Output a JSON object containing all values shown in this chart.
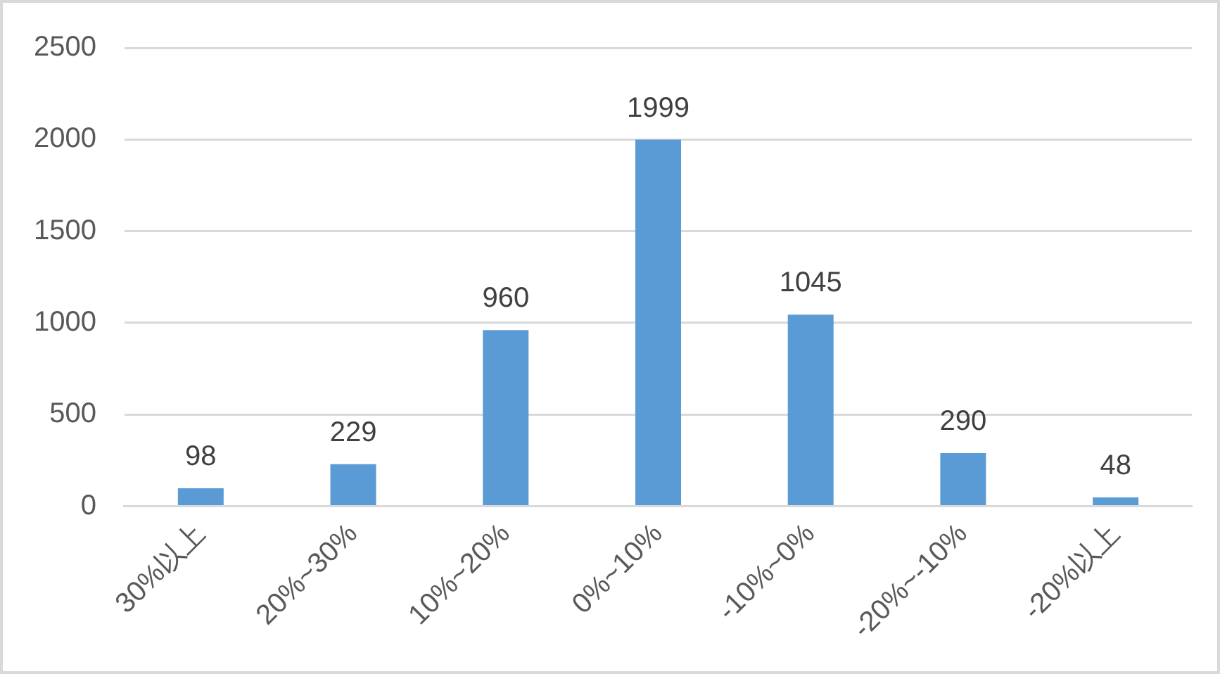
{
  "chart_data": {
    "type": "bar",
    "categories": [
      "30%以上",
      "20%~30%",
      "10%~20%",
      "0%~10%",
      "-10%~0%",
      "-20%~-10%",
      "-20%以上"
    ],
    "values": [
      98,
      229,
      960,
      1999,
      1045,
      290,
      48
    ],
    "color": "#5b9bd5",
    "ylim": [
      0,
      2500
    ],
    "yticks": [
      0,
      500,
      1000,
      1500,
      2000,
      2500
    ],
    "grid": "y",
    "data_labels": true
  }
}
